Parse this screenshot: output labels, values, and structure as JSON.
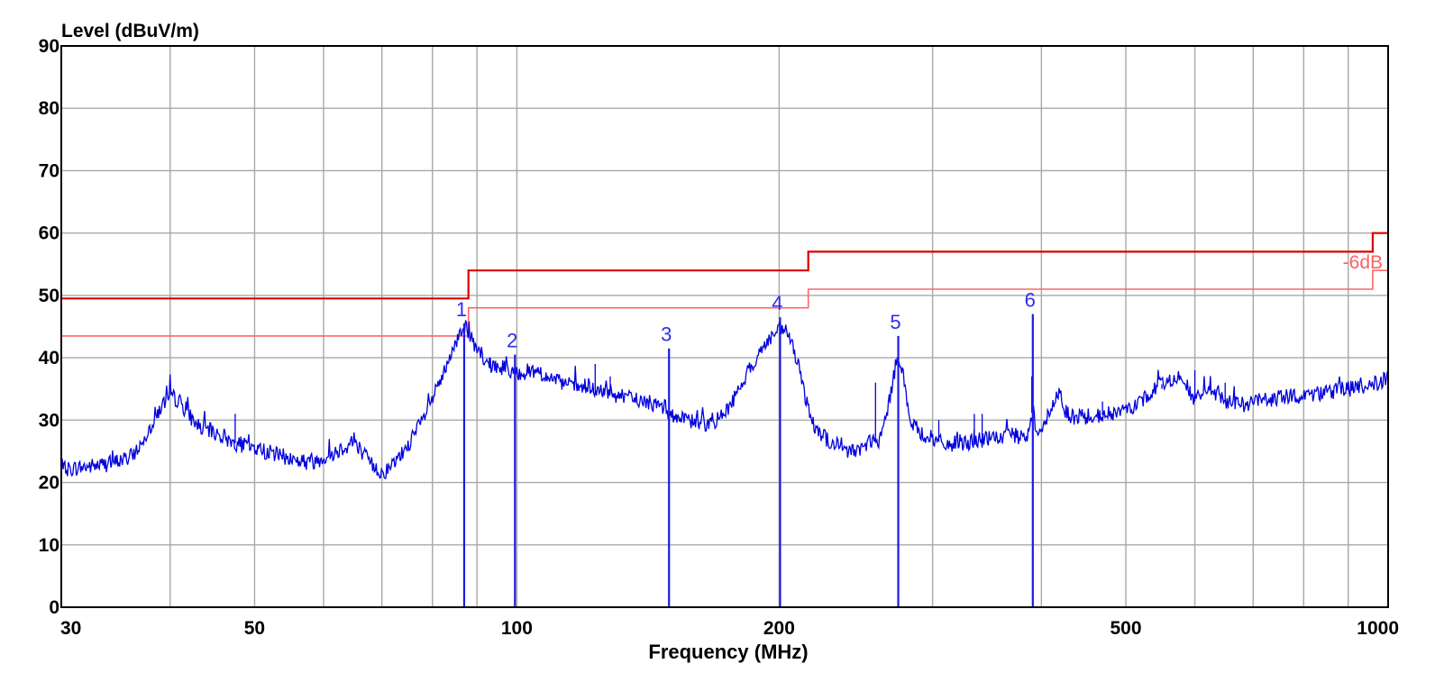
{
  "chart_data": {
    "type": "line",
    "ylabel": "Level (dBuV/m)",
    "xlabel": "Frequency (MHz)",
    "x_scale": "log",
    "xlim": [
      30,
      1000
    ],
    "ylim": [
      0,
      90
    ],
    "grid": true,
    "y_ticks": [
      "0",
      "10",
      "20",
      "30",
      "40",
      "50",
      "60",
      "70",
      "80",
      "90"
    ],
    "x_ticks": [
      {
        "value": 30,
        "label": "30"
      },
      {
        "value": 50,
        "label": "50"
      },
      {
        "value": 100,
        "label": "100"
      },
      {
        "value": 200,
        "label": "200"
      },
      {
        "value": 500,
        "label": "500"
      },
      {
        "value": 1000,
        "label": "1000"
      }
    ],
    "grid_x": [
      40,
      50,
      60,
      70,
      80,
      90,
      100,
      200,
      300,
      400,
      500,
      600,
      700,
      800,
      900
    ],
    "colors": {
      "trace": "#0000dd",
      "limit": "#dd0000",
      "margin": "#ff6666",
      "marker": "#1a1ae6"
    },
    "limit_line": {
      "points": [
        [
          30,
          49.5
        ],
        [
          88,
          49.5
        ],
        [
          88,
          54
        ],
        [
          216,
          54
        ],
        [
          216,
          57
        ],
        [
          960,
          57
        ],
        [
          960,
          60
        ],
        [
          1000,
          60
        ]
      ]
    },
    "margin_line": {
      "label": "-6dB",
      "points": [
        [
          30,
          43.5
        ],
        [
          88,
          43.5
        ],
        [
          88,
          48
        ],
        [
          216,
          48
        ],
        [
          216,
          51
        ],
        [
          960,
          51
        ],
        [
          960,
          54
        ],
        [
          1000,
          54
        ]
      ]
    },
    "markers": [
      {
        "label": "1",
        "freq": 87.0,
        "level": 45.5
      },
      {
        "label": "2",
        "freq": 99.5,
        "level": 40.5
      },
      {
        "label": "3",
        "freq": 149.5,
        "level": 41.5
      },
      {
        "label": "4",
        "freq": 200.5,
        "level": 46.5
      },
      {
        "label": "5",
        "freq": 274.0,
        "level": 43.5
      },
      {
        "label": "6",
        "freq": 391.0,
        "level": 47.0
      }
    ],
    "trace": {
      "anchors": [
        [
          30,
          22
        ],
        [
          32,
          22.5
        ],
        [
          34,
          23
        ],
        [
          36,
          24
        ],
        [
          37,
          26
        ],
        [
          38,
          29
        ],
        [
          39,
          32
        ],
        [
          40,
          34
        ],
        [
          41,
          33
        ],
        [
          42,
          31
        ],
        [
          43,
          29
        ],
        [
          45,
          28
        ],
        [
          47,
          26.5
        ],
        [
          50,
          25.5
        ],
        [
          53,
          24.5
        ],
        [
          56,
          23.5
        ],
        [
          58,
          23.2
        ],
        [
          60,
          24
        ],
        [
          62,
          25
        ],
        [
          64,
          26
        ],
        [
          65,
          27
        ],
        [
          66,
          25.5
        ],
        [
          68,
          23
        ],
        [
          70,
          21.5
        ],
        [
          72,
          22.5
        ],
        [
          75,
          26
        ],
        [
          78,
          30
        ],
        [
          81,
          35
        ],
        [
          84,
          40
        ],
        [
          86,
          44
        ],
        [
          87,
          45.5
        ],
        [
          88,
          44
        ],
        [
          90,
          41
        ],
        [
          92,
          39
        ],
        [
          95,
          38.5
        ],
        [
          98,
          38
        ],
        [
          100,
          37.5
        ],
        [
          105,
          38
        ],
        [
          108,
          37
        ],
        [
          112,
          36
        ],
        [
          120,
          35
        ],
        [
          130,
          34
        ],
        [
          140,
          33
        ],
        [
          148,
          32
        ],
        [
          150,
          31
        ],
        [
          155,
          30
        ],
        [
          165,
          29.5
        ],
        [
          170,
          30
        ],
        [
          175,
          32
        ],
        [
          180,
          35
        ],
        [
          185,
          38
        ],
        [
          190,
          41
        ],
        [
          195,
          43
        ],
        [
          200,
          44.5
        ],
        [
          205,
          44
        ],
        [
          210,
          39
        ],
        [
          215,
          33
        ],
        [
          220,
          29
        ],
        [
          230,
          26
        ],
        [
          240,
          25
        ],
        [
          250,
          25.5
        ],
        [
          255,
          27
        ],
        [
          260,
          26
        ],
        [
          265,
          30
        ],
        [
          270,
          36
        ],
        [
          274,
          41
        ],
        [
          278,
          37
        ],
        [
          282,
          30
        ],
        [
          290,
          28
        ],
        [
          300,
          27
        ],
        [
          310,
          26
        ],
        [
          330,
          26.5
        ],
        [
          350,
          27
        ],
        [
          370,
          27.5
        ],
        [
          385,
          27
        ],
        [
          391,
          32
        ],
        [
          395,
          28
        ],
        [
          405,
          30
        ],
        [
          415,
          33
        ],
        [
          420,
          35
        ],
        [
          425,
          32
        ],
        [
          430,
          30.5
        ],
        [
          450,
          30.5
        ],
        [
          480,
          31
        ],
        [
          500,
          31.5
        ],
        [
          520,
          33
        ],
        [
          540,
          35
        ],
        [
          560,
          36.5
        ],
        [
          580,
          37
        ],
        [
          600,
          33
        ],
        [
          620,
          35
        ],
        [
          650,
          33
        ],
        [
          680,
          32.5
        ],
        [
          700,
          33
        ],
        [
          750,
          33.5
        ],
        [
          800,
          34
        ],
        [
          850,
          34.5
        ],
        [
          900,
          35
        ],
        [
          950,
          35.5
        ],
        [
          980,
          36
        ],
        [
          1000,
          36.5
        ]
      ],
      "spikes": [
        [
          47.5,
          31
        ],
        [
          93,
          40
        ],
        [
          123,
          39
        ],
        [
          128,
          37
        ],
        [
          258,
          36
        ],
        [
          305,
          30
        ],
        [
          335,
          31
        ],
        [
          342,
          31
        ],
        [
          390,
          37
        ],
        [
          470,
          33
        ],
        [
          550,
          35
        ],
        [
          600,
          38
        ],
        [
          650,
          36
        ]
      ]
    }
  }
}
